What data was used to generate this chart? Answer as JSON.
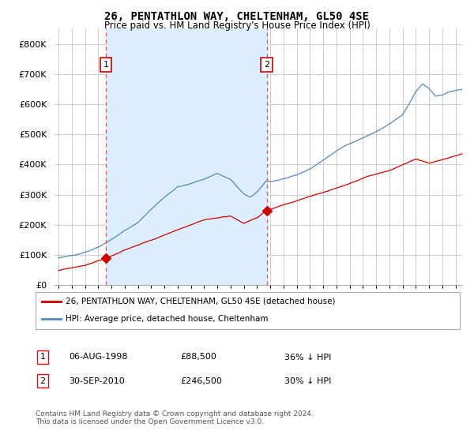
{
  "title": "26, PENTATHLON WAY, CHELTENHAM, GL50 4SE",
  "subtitle": "Price paid vs. HM Land Registry's House Price Index (HPI)",
  "legend_red": "26, PENTATHLON WAY, CHELTENHAM, GL50 4SE (detached house)",
  "legend_blue": "HPI: Average price, detached house, Cheltenham",
  "footer": "Contains HM Land Registry data © Crown copyright and database right 2024.\nThis data is licensed under the Open Government Licence v3.0.",
  "red_color": "#cc0000",
  "blue_color": "#5588bb",
  "blue_fill": "#ddeeff",
  "dashed_color": "#cc6666",
  "ylim": [
    0,
    850000
  ],
  "yticks": [
    0,
    100000,
    200000,
    300000,
    400000,
    500000,
    600000,
    700000,
    800000
  ],
  "background_color": "#ffffff",
  "plot_bg_color": "#ffffff",
  "grid_color": "#cccccc",
  "sale1_year_float": 1998.583,
  "sale1_price": 88500,
  "sale2_year_float": 2010.75,
  "sale2_price": 246500
}
